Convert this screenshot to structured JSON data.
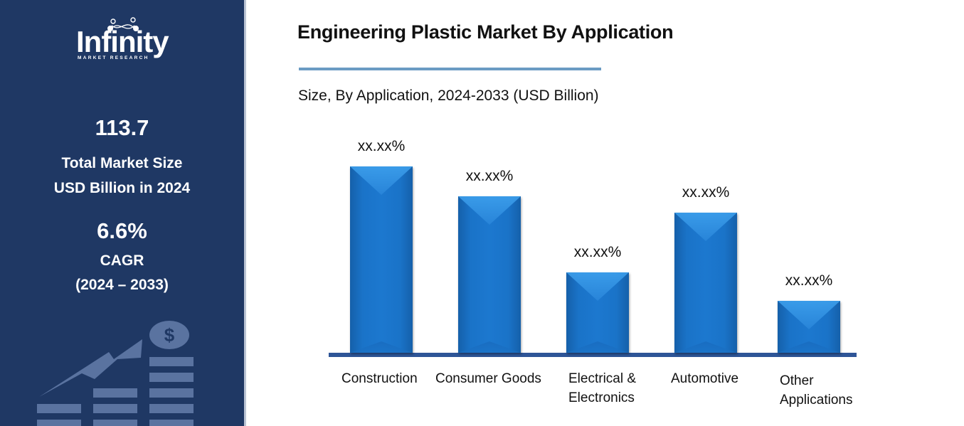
{
  "sidebar": {
    "logo": {
      "word": "Infinity",
      "sub": "MARKET RESEARCH"
    },
    "market_size": {
      "value": "113.7",
      "label_line1": "Total Market Size",
      "label_line2": "USD Billion in 2024"
    },
    "cagr": {
      "value": "6.6%",
      "label": "CAGR",
      "period": "(2024 – 2033)"
    },
    "decor_icon": "growth-chart-dollar-icon"
  },
  "header": {
    "title": "Engineering Plastic Market By Application",
    "subtitle": "Size, By Application, 2024-2033 (USD Billion)",
    "rule_color": "#6b9bc3"
  },
  "colors": {
    "sidebar_bg": "#1f3864",
    "bar": "#1a73c8",
    "axis": "#2e5597"
  },
  "chart_data": {
    "type": "bar",
    "title": "Engineering Plastic Market By Application",
    "subtitle": "Size, By Application, 2024-2033 (USD Billion)",
    "xlabel": "",
    "ylabel": "",
    "categories": [
      "Construction",
      "Consumer Goods",
      "Electrical & Electronics",
      "Automotive",
      "Other Applications"
    ],
    "category_lines": [
      [
        "Construction"
      ],
      [
        "Consumer Goods"
      ],
      [
        "Electrical &",
        "Electronics"
      ],
      [
        "Automotive"
      ],
      [
        "Other",
        "Applications"
      ]
    ],
    "values": [
      100,
      84,
      43,
      75,
      28
    ],
    "value_note": "relative bar heights (tallest = 100); no numeric axis shown",
    "data_labels": [
      "xx.xx%",
      "xx.xx%",
      "xx.xx%",
      "xx.xx%",
      "xx.xx%"
    ],
    "ylim": [
      0,
      100
    ],
    "grid": false,
    "legend": null
  }
}
